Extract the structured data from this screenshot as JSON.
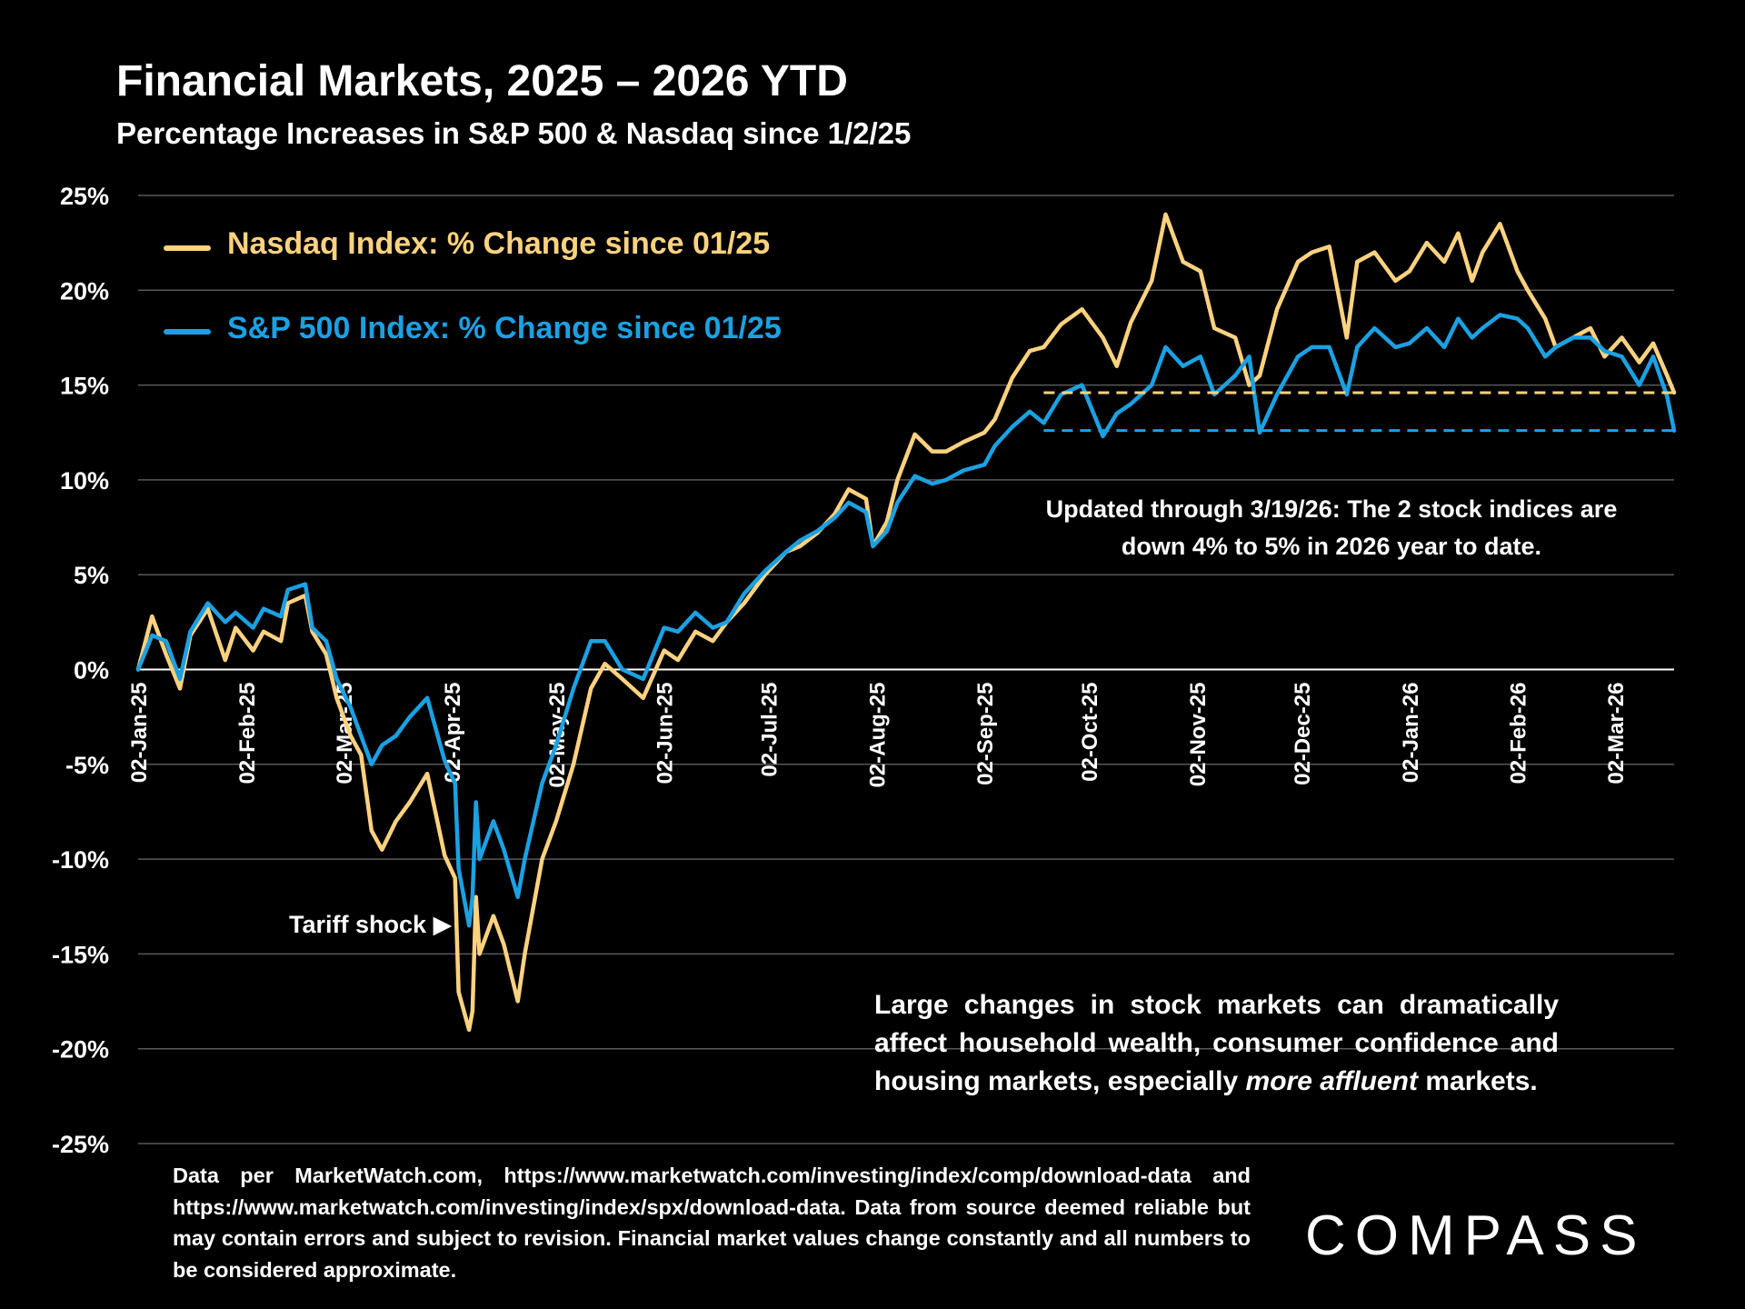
{
  "title": "Financial Markets, 2025 – 2026 YTD",
  "subtitle": "Percentage Increases in S&P 500 & Nasdaq since 1/2/25",
  "legend": {
    "nasdaq": "Nasdaq Index: % Change since 01/25",
    "sp500": "S&P 500 Index: % Change since 01/25"
  },
  "annotations": {
    "updated": "Updated through 3/19/26:  The 2 stock indices are down 4% to 5% in 2026 year to date.",
    "tariff": "Tariff shock",
    "large_changes_pre": "Large changes in stock markets can dramatically affect household wealth, consumer confidence and housing markets, especially ",
    "large_changes_em": "more affluent",
    "large_changes_post": " markets."
  },
  "source_note": "Data per MarketWatch.com, https://www.marketwatch.com/investing/index/comp/download-data and https://www.marketwatch.com/investing/index/spx/download-data. Data from source deemed reliable but may contain errors and subject to revision. Financial market values change constantly and all numbers to be considered approximate.",
  "logo_text": "COMPASS",
  "colors": {
    "nasdaq": "#FFD27F",
    "sp500": "#1BA1E2",
    "background": "#000000",
    "grid": "#595959"
  },
  "chart_data": {
    "type": "line",
    "title": "Financial Markets, 2025 – 2026 YTD",
    "subtitle": "Percentage Increases in S&P 500 & Nasdaq since 1/2/25",
    "xlabel": "",
    "ylabel": "",
    "ylim": [
      -25,
      25
    ],
    "y_ticks": [
      25,
      20,
      15,
      10,
      5,
      0,
      -5,
      -10,
      -15,
      -20,
      -25
    ],
    "y_tick_labels": [
      "25%",
      "20%",
      "15%",
      "10%",
      "5%",
      "0%",
      "-5%",
      "-10%",
      "-15%",
      "-20%",
      "-25%"
    ],
    "x_range": [
      "2025-01-02",
      "2026-03-19"
    ],
    "x_ticks": [
      "2025-01-02",
      "2025-02-02",
      "2025-03-02",
      "2025-04-02",
      "2025-05-02",
      "2025-06-02",
      "2025-07-02",
      "2025-08-02",
      "2025-09-02",
      "2025-10-02",
      "2025-11-02",
      "2025-12-02",
      "2026-01-02",
      "2026-02-02",
      "2026-03-02"
    ],
    "x_tick_labels": [
      "02-Jan-25",
      "02-Feb-25",
      "02-Mar-25",
      "02-Apr-25",
      "02-May-25",
      "02-Jun-25",
      "02-Jul-25",
      "02-Aug-25",
      "02-Sep-25",
      "02-Oct-25",
      "02-Nov-25",
      "02-Dec-25",
      "02-Jan-26",
      "02-Feb-26",
      "02-Mar-26"
    ],
    "grid": true,
    "legend_position": "top-left",
    "series": [
      {
        "name": "Nasdaq Index: % Change since 01/25",
        "x": [
          "2025-01-02",
          "2025-01-06",
          "2025-01-10",
          "2025-01-14",
          "2025-01-17",
          "2025-01-22",
          "2025-01-27",
          "2025-01-30",
          "2025-02-04",
          "2025-02-07",
          "2025-02-12",
          "2025-02-14",
          "2025-02-19",
          "2025-02-21",
          "2025-02-25",
          "2025-02-28",
          "2025-03-04",
          "2025-03-07",
          "2025-03-10",
          "2025-03-13",
          "2025-03-17",
          "2025-03-21",
          "2025-03-26",
          "2025-03-31",
          "2025-04-03",
          "2025-04-04",
          "2025-04-07",
          "2025-04-08",
          "2025-04-09",
          "2025-04-10",
          "2025-04-14",
          "2025-04-17",
          "2025-04-21",
          "2025-04-23",
          "2025-04-28",
          "2025-05-02",
          "2025-05-07",
          "2025-05-12",
          "2025-05-16",
          "2025-05-21",
          "2025-05-27",
          "2025-06-02",
          "2025-06-06",
          "2025-06-11",
          "2025-06-16",
          "2025-06-20",
          "2025-06-25",
          "2025-07-01",
          "2025-07-07",
          "2025-07-11",
          "2025-07-16",
          "2025-07-21",
          "2025-07-25",
          "2025-07-30",
          "2025-08-01",
          "2025-08-05",
          "2025-08-08",
          "2025-08-13",
          "2025-08-18",
          "2025-08-22",
          "2025-08-27",
          "2025-09-02",
          "2025-09-05",
          "2025-09-10",
          "2025-09-15",
          "2025-09-19",
          "2025-09-24",
          "2025-09-30",
          "2025-10-06",
          "2025-10-10",
          "2025-10-14",
          "2025-10-20",
          "2025-10-24",
          "2025-10-29",
          "2025-11-03",
          "2025-11-07",
          "2025-11-13",
          "2025-11-17",
          "2025-11-20",
          "2025-11-25",
          "2025-12-01",
          "2025-12-05",
          "2025-12-10",
          "2025-12-15",
          "2025-12-18",
          "2025-12-23",
          "2025-12-29",
          "2026-01-02",
          "2026-01-07",
          "2026-01-12",
          "2026-01-16",
          "2026-01-20",
          "2026-01-23",
          "2026-01-28",
          "2026-02-02",
          "2026-02-05",
          "2026-02-10",
          "2026-02-13",
          "2026-02-18",
          "2026-02-23",
          "2026-02-27",
          "2026-03-04",
          "2026-03-09",
          "2026-03-13",
          "2026-03-17",
          "2026-03-19"
        ],
        "values": [
          0,
          2.8,
          0.8,
          -1,
          1.8,
          3.2,
          0.5,
          2.2,
          1,
          2,
          1.5,
          3.5,
          3.9,
          2,
          0.8,
          -1.5,
          -3.5,
          -4.5,
          -8.5,
          -9.5,
          -8,
          -7,
          -5.5,
          -9.8,
          -11,
          -17,
          -19,
          -18,
          -12,
          -15,
          -13,
          -14.5,
          -17.5,
          -15,
          -10,
          -8,
          -5,
          -1,
          0.3,
          -0.5,
          -1.5,
          1,
          0.5,
          2,
          1.5,
          2.5,
          3.5,
          5,
          6.2,
          6.5,
          7.2,
          8.2,
          9.5,
          9,
          6.5,
          7.8,
          10,
          12.4,
          11.5,
          11.5,
          12,
          12.5,
          13.2,
          15.4,
          16.8,
          17,
          18.2,
          19,
          17.5,
          16,
          18.3,
          20.5,
          24,
          21.5,
          21,
          18,
          17.5,
          15,
          15.5,
          19,
          21.5,
          22,
          22.3,
          17.5,
          21.5,
          22,
          20.5,
          21,
          22.5,
          21.5,
          23,
          20.5,
          22,
          23.5,
          21,
          20,
          18.5,
          17,
          17.5,
          18,
          16.5,
          17.5,
          16.2,
          17.2,
          15.5,
          14.6
        ]
      },
      {
        "name": "S&P 500 Index: % Change since 01/25",
        "x": [
          "2025-01-02",
          "2025-01-06",
          "2025-01-10",
          "2025-01-14",
          "2025-01-17",
          "2025-01-22",
          "2025-01-27",
          "2025-01-30",
          "2025-02-04",
          "2025-02-07",
          "2025-02-12",
          "2025-02-14",
          "2025-02-19",
          "2025-02-21",
          "2025-02-25",
          "2025-02-28",
          "2025-03-04",
          "2025-03-07",
          "2025-03-10",
          "2025-03-13",
          "2025-03-17",
          "2025-03-21",
          "2025-03-26",
          "2025-03-31",
          "2025-04-03",
          "2025-04-04",
          "2025-04-07",
          "2025-04-08",
          "2025-04-09",
          "2025-04-10",
          "2025-04-14",
          "2025-04-17",
          "2025-04-21",
          "2025-04-23",
          "2025-04-28",
          "2025-05-02",
          "2025-05-07",
          "2025-05-12",
          "2025-05-16",
          "2025-05-21",
          "2025-05-27",
          "2025-06-02",
          "2025-06-06",
          "2025-06-11",
          "2025-06-16",
          "2025-06-20",
          "2025-06-25",
          "2025-07-01",
          "2025-07-07",
          "2025-07-11",
          "2025-07-16",
          "2025-07-21",
          "2025-07-25",
          "2025-07-30",
          "2025-08-01",
          "2025-08-05",
          "2025-08-08",
          "2025-08-13",
          "2025-08-18",
          "2025-08-22",
          "2025-08-27",
          "2025-09-02",
          "2025-09-05",
          "2025-09-10",
          "2025-09-15",
          "2025-09-19",
          "2025-09-24",
          "2025-09-30",
          "2025-10-06",
          "2025-10-10",
          "2025-10-14",
          "2025-10-20",
          "2025-10-24",
          "2025-10-29",
          "2025-11-03",
          "2025-11-07",
          "2025-11-13",
          "2025-11-17",
          "2025-11-20",
          "2025-11-25",
          "2025-12-01",
          "2025-12-05",
          "2025-12-10",
          "2025-12-15",
          "2025-12-18",
          "2025-12-23",
          "2025-12-29",
          "2026-01-02",
          "2026-01-07",
          "2026-01-12",
          "2026-01-16",
          "2026-01-20",
          "2026-01-23",
          "2026-01-28",
          "2026-02-02",
          "2026-02-05",
          "2026-02-10",
          "2026-02-13",
          "2026-02-18",
          "2026-02-23",
          "2026-02-27",
          "2026-03-04",
          "2026-03-09",
          "2026-03-13",
          "2026-03-17",
          "2026-03-19"
        ],
        "values": [
          0,
          1.8,
          1.5,
          -0.5,
          2,
          3.5,
          2.5,
          3,
          2.2,
          3.2,
          2.8,
          4.2,
          4.5,
          2.2,
          1.5,
          -0.5,
          -2,
          -3.5,
          -5,
          -4,
          -3.5,
          -2.5,
          -1.5,
          -4.8,
          -6,
          -10.5,
          -13.5,
          -12,
          -7,
          -10,
          -8,
          -9.5,
          -12,
          -10,
          -6,
          -4,
          -1,
          1.5,
          1.5,
          0,
          -0.5,
          2.2,
          2,
          3,
          2.2,
          2.5,
          4,
          5.2,
          6.2,
          6.8,
          7.3,
          8,
          8.8,
          8.3,
          6.5,
          7.3,
          8.8,
          10.2,
          9.8,
          10,
          10.5,
          10.8,
          11.8,
          12.8,
          13.6,
          13,
          14.5,
          15,
          12.3,
          13.5,
          14,
          15,
          17,
          16,
          16.5,
          14.5,
          15.5,
          16.5,
          12.5,
          14.5,
          16.5,
          17,
          17,
          14.5,
          17,
          18,
          17,
          17.2,
          18,
          17,
          18.5,
          17.5,
          18,
          18.7,
          18.5,
          18,
          16.5,
          17,
          17.5,
          17.5,
          16.8,
          16.5,
          15,
          16.5,
          14.4,
          12.6
        ]
      }
    ],
    "reference_lines": [
      {
        "series": "Nasdaq Index: % Change since 01/25",
        "y": 14.6,
        "x_start": "2025-09-19",
        "x_end": "2026-03-19",
        "style": "dashed"
      },
      {
        "series": "S&P 500 Index: % Change since 01/25",
        "y": 12.6,
        "x_start": "2025-09-19",
        "x_end": "2026-03-19",
        "style": "dashed"
      }
    ],
    "annotation_points": [
      {
        "text": "Tariff shock",
        "x": "2025-04-04",
        "y": -13.5
      }
    ]
  }
}
